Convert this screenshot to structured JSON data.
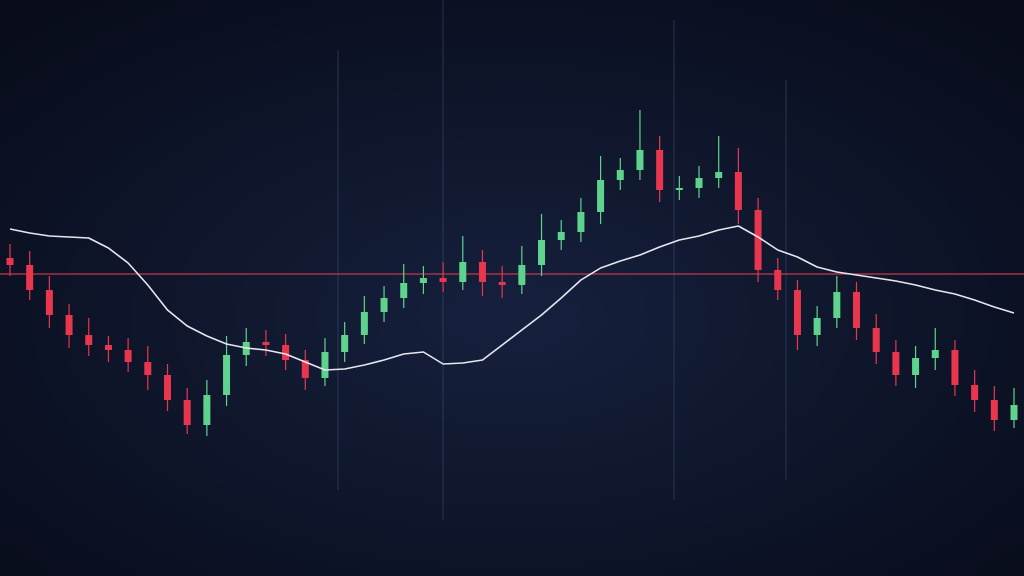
{
  "chart_data": {
    "type": "candlestick",
    "ylim": [
      0,
      576
    ],
    "up_color": "#5fd38d",
    "down_color": "#e8364f",
    "open": [
      318,
      311,
      286,
      261,
      241,
      231,
      226,
      214,
      201,
      176,
      151,
      181,
      221,
      234,
      231,
      216,
      198,
      224,
      241,
      264,
      278,
      293,
      298,
      294,
      314,
      294,
      291,
      311,
      336,
      344,
      364,
      396,
      406,
      426,
      386,
      388,
      398,
      404,
      366,
      306,
      286,
      241,
      258,
      284,
      248,
      224,
      201,
      218,
      226,
      191,
      176,
      156
    ],
    "high": [
      332,
      325,
      300,
      272,
      258,
      240,
      238,
      230,
      212,
      188,
      196,
      240,
      248,
      246,
      242,
      226,
      238,
      254,
      280,
      290,
      312,
      310,
      314,
      340,
      326,
      310,
      330,
      362,
      356,
      378,
      420,
      418,
      466,
      440,
      400,
      410,
      440,
      428,
      378,
      318,
      296,
      270,
      300,
      294,
      262,
      236,
      230,
      248,
      236,
      206,
      190,
      188
    ],
    "low": [
      300,
      276,
      248,
      228,
      220,
      214,
      204,
      186,
      165,
      142,
      140,
      170,
      210,
      220,
      206,
      186,
      190,
      214,
      232,
      254,
      268,
      282,
      284,
      286,
      280,
      278,
      282,
      300,
      326,
      334,
      352,
      386,
      396,
      374,
      376,
      378,
      388,
      352,
      294,
      276,
      226,
      230,
      248,
      236,
      212,
      190,
      188,
      206,
      180,
      164,
      145,
      148
    ],
    "close": [
      311,
      286,
      261,
      241,
      231,
      226,
      214,
      201,
      176,
      151,
      181,
      221,
      234,
      231,
      216,
      198,
      224,
      241,
      264,
      278,
      293,
      298,
      294,
      314,
      294,
      291,
      311,
      336,
      344,
      364,
      396,
      406,
      426,
      386,
      388,
      398,
      404,
      366,
      306,
      286,
      241,
      258,
      284,
      248,
      224,
      201,
      218,
      226,
      191,
      176,
      156,
      171
    ],
    "moving_average": {
      "color": "#e6e6ef",
      "values": [
        347,
        343,
        340,
        339,
        338,
        328,
        313,
        291,
        266,
        250,
        240,
        232,
        228,
        226,
        222,
        214,
        206,
        207,
        211,
        216,
        222,
        224,
        212,
        213,
        216,
        231,
        246,
        261,
        278,
        296,
        308,
        315,
        321,
        329,
        336,
        340,
        346,
        350,
        339,
        326,
        319,
        309,
        304,
        301,
        298,
        295,
        291,
        286,
        282,
        276,
        269,
        263
      ]
    },
    "reference_line": {
      "value": 302,
      "color": "#c0394a"
    }
  }
}
